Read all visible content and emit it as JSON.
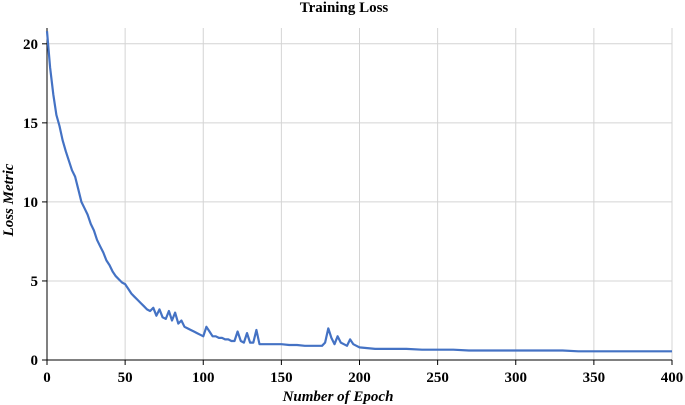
{
  "chart_data": {
    "type": "line",
    "title": "Training Loss",
    "xlabel": "Number of Epoch",
    "ylabel": "Loss Metric",
    "xlim": [
      0,
      400
    ],
    "ylim": [
      0,
      21
    ],
    "x_ticks": [
      0,
      50,
      100,
      150,
      200,
      250,
      300,
      350,
      400
    ],
    "y_ticks": [
      0,
      5,
      10,
      15,
      20
    ],
    "grid": true,
    "series": [
      {
        "color": "#4472C4",
        "x": [
          0,
          2,
          4,
          6,
          8,
          10,
          12,
          14,
          16,
          18,
          20,
          22,
          24,
          26,
          28,
          30,
          32,
          34,
          36,
          38,
          40,
          42,
          44,
          46,
          48,
          50,
          52,
          54,
          56,
          58,
          60,
          62,
          64,
          66,
          68,
          70,
          72,
          74,
          76,
          78,
          80,
          82,
          84,
          86,
          88,
          90,
          92,
          94,
          96,
          98,
          100,
          102,
          104,
          106,
          108,
          110,
          112,
          114,
          116,
          118,
          120,
          122,
          124,
          126,
          128,
          130,
          132,
          134,
          136,
          138,
          140,
          145,
          150,
          155,
          160,
          165,
          170,
          172,
          174,
          176,
          178,
          180,
          182,
          184,
          186,
          188,
          190,
          192,
          194,
          196,
          198,
          200,
          205,
          210,
          220,
          230,
          240,
          250,
          260,
          270,
          280,
          290,
          300,
          310,
          320,
          330,
          340,
          350,
          360,
          370,
          380,
          390,
          400
        ],
        "y": [
          20.8,
          18.5,
          16.8,
          15.5,
          14.8,
          13.9,
          13.2,
          12.6,
          12.0,
          11.6,
          10.8,
          10.0,
          9.6,
          9.2,
          8.6,
          8.2,
          7.6,
          7.2,
          6.8,
          6.3,
          6.0,
          5.6,
          5.3,
          5.1,
          4.9,
          4.8,
          4.5,
          4.2,
          4.0,
          3.8,
          3.6,
          3.4,
          3.2,
          3.1,
          3.3,
          2.8,
          3.2,
          2.7,
          2.6,
          3.1,
          2.5,
          3.0,
          2.3,
          2.5,
          2.1,
          2.0,
          1.9,
          1.8,
          1.7,
          1.6,
          1.5,
          2.1,
          1.8,
          1.5,
          1.5,
          1.4,
          1.4,
          1.3,
          1.3,
          1.2,
          1.2,
          1.8,
          1.2,
          1.1,
          1.7,
          1.1,
          1.1,
          1.9,
          1.0,
          1.0,
          1.0,
          1.0,
          1.0,
          0.95,
          0.95,
          0.9,
          0.9,
          0.9,
          0.9,
          0.9,
          1.1,
          2.0,
          1.4,
          1.0,
          1.5,
          1.1,
          1.0,
          0.9,
          1.3,
          1.0,
          0.9,
          0.8,
          0.75,
          0.7,
          0.7,
          0.7,
          0.65,
          0.65,
          0.65,
          0.6,
          0.6,
          0.6,
          0.6,
          0.6,
          0.6,
          0.6,
          0.55,
          0.55,
          0.55,
          0.55,
          0.55,
          0.55,
          0.55
        ]
      }
    ]
  }
}
